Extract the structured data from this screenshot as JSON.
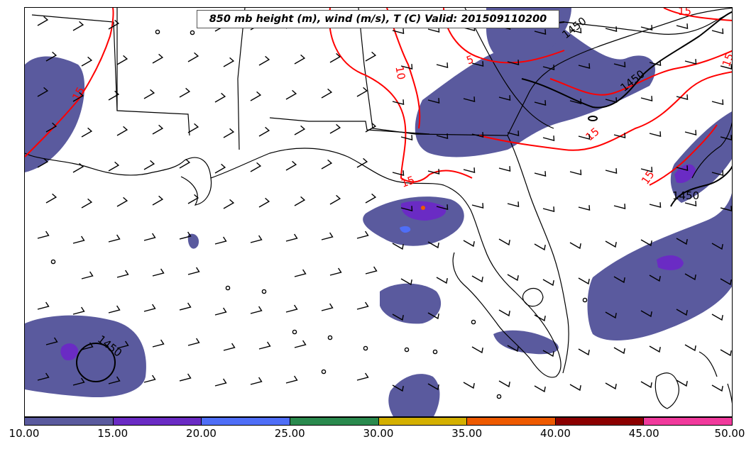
{
  "title": "850 mb height (m), wind (m/s), T (C) Valid: 201509110200",
  "colorbar": {
    "ticks": [
      "10.00",
      "15.00",
      "20.00",
      "25.00",
      "30.00",
      "35.00",
      "40.00",
      "45.00",
      "50.00"
    ],
    "colors": [
      "#5a5a9e",
      "#6a2bc4",
      "#4f6ef7",
      "#2a8a4e",
      "#d4b000",
      "#ee5a00",
      "#8b0000",
      "#f03a9c"
    ]
  },
  "contours": {
    "height_label": "1450",
    "temp_labels": [
      "15",
      "10",
      "5",
      "15",
      "15",
      "15",
      "15",
      "15"
    ],
    "height_color": "#000000",
    "temp_color": "#ff0000"
  }
}
